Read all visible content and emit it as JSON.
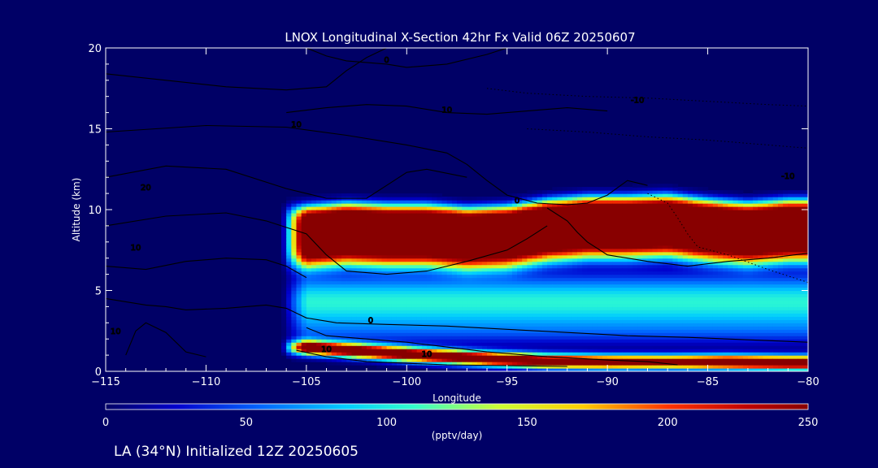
{
  "chart_data": {
    "type": "heatmap",
    "title": "LNOX Longitudinal X-Section 42hr  Fx Valid 06Z 20250607",
    "xlabel": "Longitude",
    "ylabel": "Altitude (km)",
    "xlim": [
      -115,
      -80
    ],
    "ylim": [
      0,
      20
    ],
    "x_ticks": [
      "-115",
      "-110",
      "-105",
      "-100",
      "-95",
      "-90",
      "-85",
      "-80"
    ],
    "y_ticks": [
      "0",
      "5",
      "10",
      "15",
      "20"
    ],
    "colorbar": {
      "min": 0,
      "max": 250,
      "ticks": [
        "0",
        "50",
        "100",
        "150",
        "200",
        "250"
      ],
      "units": "(pptv/day)",
      "stops": [
        {
          "v": 0,
          "c": "#000066"
        },
        {
          "v": 25,
          "c": "#0000cc"
        },
        {
          "v": 55,
          "c": "#0066ff"
        },
        {
          "v": 85,
          "c": "#00ccff"
        },
        {
          "v": 110,
          "c": "#33ffcc"
        },
        {
          "v": 140,
          "c": "#ccff33"
        },
        {
          "v": 170,
          "c": "#ffcc00"
        },
        {
          "v": 200,
          "c": "#ff3300"
        },
        {
          "v": 230,
          "c": "#bb0000"
        },
        {
          "v": 250,
          "c": "#880000"
        }
      ]
    },
    "upper_band": {
      "x": [
        -105,
        -103,
        -101,
        -99,
        -97,
        -95,
        -93,
        -91,
        -89,
        -87,
        -85,
        -83,
        -81,
        -80
      ],
      "center_alt": [
        8.6,
        8.8,
        8.7,
        8.7,
        8.5,
        8.6,
        9.0,
        9.2,
        9.2,
        9.3,
        9.0,
        8.8,
        9.0,
        9.0
      ],
      "peak": [
        250,
        250,
        250,
        250,
        250,
        250,
        250,
        250,
        250,
        250,
        250,
        250,
        250,
        250
      ]
    },
    "lower_band": {
      "x": [
        -105,
        -102,
        -99,
        -96,
        -93,
        -90,
        -87,
        -84,
        -81,
        -80
      ],
      "center_alt": [
        1.5,
        1.25,
        1.0,
        0.8,
        0.65,
        0.6,
        0.6,
        0.6,
        0.55,
        0.55
      ],
      "peak": [
        250,
        250,
        250,
        250,
        240,
        230,
        210,
        250,
        250,
        250
      ]
    },
    "contour_labels": [
      "0",
      "10",
      "20",
      "-10"
    ],
    "colors": {
      "background": "#000066",
      "contour": "#000000",
      "text": "#ffffff"
    }
  },
  "footer": "LA (34°N) Initialized 12Z 20250605"
}
